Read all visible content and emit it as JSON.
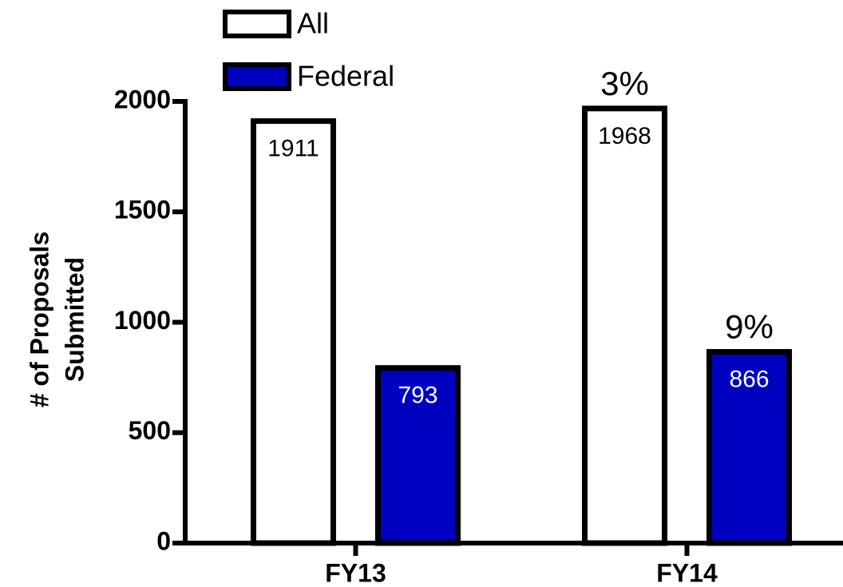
{
  "chart_data": {
    "type": "bar",
    "categories": [
      "FY13",
      "FY14"
    ],
    "series": [
      {
        "name": "All",
        "color": "#ffffff",
        "values": [
          1911,
          1968
        ],
        "annotations": [
          null,
          "3%"
        ]
      },
      {
        "name": "Federal",
        "color": "#0000c0",
        "values": [
          793,
          866
        ],
        "annotations": [
          null,
          "9%"
        ]
      }
    ],
    "ylabel_lines": [
      "# of Proposals",
      "Submitted"
    ],
    "ylim": [
      0,
      2000
    ],
    "yticks": [
      0,
      500,
      1000,
      1500,
      2000
    ],
    "grid": false
  }
}
